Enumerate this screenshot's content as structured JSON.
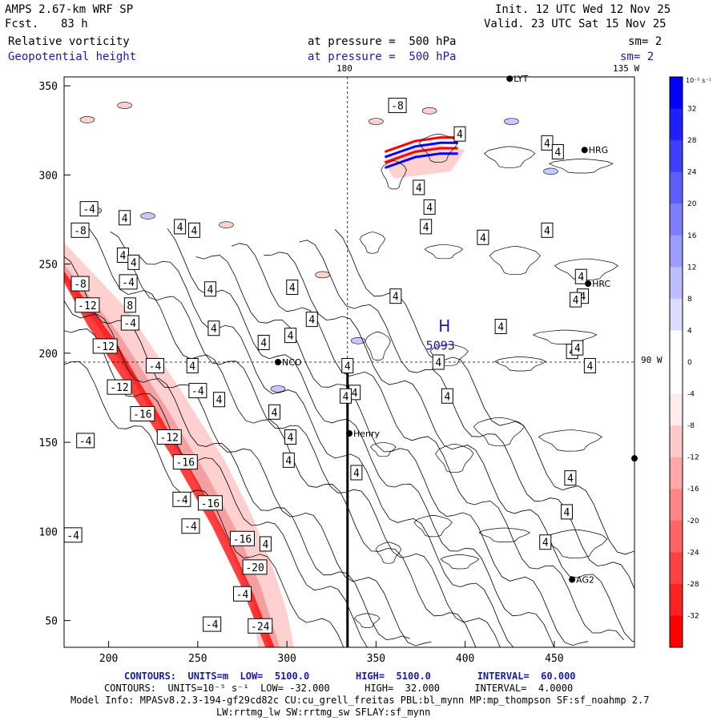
{
  "header": {
    "model": "AMPS 2.67-km WRF SP",
    "fcst_label": "Fcst.",
    "fcst_value": "83 h",
    "init": "Init. 12 UTC Wed 12 Nov 25",
    "valid": "Valid. 23 UTC Sat 15 Nov 25",
    "field1": "Relative vorticity",
    "field2": "Geopotential height",
    "pressure1": "at pressure =  500 hPa",
    "pressure2": "at pressure =  500 hPa",
    "sm1": "sm= 2",
    "sm2": "sm= 2"
  },
  "footer": {
    "line1": "CONTOURS:  UNITS=m  LOW=  5100.0        HIGH=  5100.0        INTERVAL=  60.000",
    "line2": "CONTOURS:  UNITS=10⁻⁵ s⁻¹  LOW= -32.000      HIGH=  32.000      INTERVAL=  4.0000",
    "line3": "Model Info: MPASv8.2.3-194-gf29cd82c CU:cu_grell_freitas PBL:bl_mynn MP:mp_thompson SF:sf_noahmp 2.7",
    "line4": "LW:rrtmg_lw SW:rrtmg_sw SFLAY:sf_mynn"
  },
  "map_labels": {
    "lon_180": "180",
    "lon_135w": "135 W",
    "lat_90w": "90 W",
    "high_H": "H",
    "high_value": "5093"
  },
  "stations": [
    {
      "name": "LYT",
      "x": 425,
      "y": 354
    },
    {
      "name": "HRG",
      "x": 467,
      "y": 314
    },
    {
      "name": "HRC",
      "x": 469,
      "y": 239
    },
    {
      "name": "NCO",
      "x": 295,
      "y": 195
    },
    {
      "name": "Henry",
      "x": 335,
      "y": 155
    },
    {
      "name": "AG2",
      "x": 460,
      "y": 73
    },
    {
      "name": "",
      "x": 495,
      "y": 141
    }
  ],
  "colors": {
    "blue_dark": "#0000ff",
    "blue_light": "#c8c8ff",
    "red_dark": "#ff0000",
    "red_light": "#ffd0d0",
    "text_blue": "#1a1aa8"
  },
  "chart_data": {
    "type": "contour",
    "title": "Relative vorticity and Geopotential height at 500 hPa",
    "xlim": [
      175,
      495
    ],
    "ylim": [
      35,
      355
    ],
    "xticks": [
      200,
      250,
      300,
      350,
      400,
      450
    ],
    "yticks": [
      50,
      100,
      150,
      200,
      250,
      300,
      350
    ],
    "colorbar": {
      "units": "10⁻⁵ s⁻¹",
      "ticks": [
        32,
        28,
        24,
        20,
        16,
        12,
        8,
        4,
        0,
        -4,
        -8,
        -12,
        -16,
        -20,
        -24,
        -28,
        -32
      ]
    },
    "contour_labels": [
      {
        "v": "-8",
        "x": 362,
        "y": 339
      },
      {
        "v": "4",
        "x": 397,
        "y": 323
      },
      {
        "v": "4",
        "x": 446,
        "y": 318
      },
      {
        "v": "4",
        "x": 452,
        "y": 313
      },
      {
        "v": "4",
        "x": 374,
        "y": 293
      },
      {
        "v": "-4",
        "x": 189,
        "y": 281
      },
      {
        "v": "4",
        "x": 209,
        "y": 276
      },
      {
        "v": "4",
        "x": 240,
        "y": 271
      },
      {
        "v": "4",
        "x": 248,
        "y": 269
      },
      {
        "v": "4",
        "x": 378,
        "y": 271
      },
      {
        "v": "4",
        "x": 446,
        "y": 269
      },
      {
        "v": "-8",
        "x": 184,
        "y": 269
      },
      {
        "v": "4",
        "x": 410,
        "y": 265
      },
      {
        "v": "4",
        "x": 208,
        "y": 255
      },
      {
        "v": "4",
        "x": 214,
        "y": 251
      },
      {
        "v": "4",
        "x": 380,
        "y": 282
      },
      {
        "v": "-4",
        "x": 211,
        "y": 240
      },
      {
        "v": "-8",
        "x": 184,
        "y": 239
      },
      {
        "v": "4",
        "x": 303,
        "y": 237
      },
      {
        "v": "4",
        "x": 257,
        "y": 236
      },
      {
        "v": "4",
        "x": 465,
        "y": 243
      },
      {
        "v": "4",
        "x": 466,
        "y": 232
      },
      {
        "v": "4",
        "x": 462,
        "y": 230
      },
      {
        "v": "4",
        "x": 361,
        "y": 232
      },
      {
        "v": "8",
        "x": 212,
        "y": 227
      },
      {
        "v": "-12",
        "x": 188,
        "y": 227
      },
      {
        "v": "4",
        "x": 314,
        "y": 219
      },
      {
        "v": "4",
        "x": 259,
        "y": 214
      },
      {
        "v": "4",
        "x": 302,
        "y": 210
      },
      {
        "v": "4",
        "x": 420,
        "y": 215
      },
      {
        "v": "-4",
        "x": 212,
        "y": 217
      },
      {
        "v": "-12",
        "x": 198,
        "y": 204
      },
      {
        "v": "4",
        "x": 287,
        "y": 206
      },
      {
        "v": "4",
        "x": 460,
        "y": 201
      },
      {
        "v": "4",
        "x": 463,
        "y": 203
      },
      {
        "v": "-4",
        "x": 226,
        "y": 193
      },
      {
        "v": "4",
        "x": 247,
        "y": 193
      },
      {
        "v": "4",
        "x": 334,
        "y": 193
      },
      {
        "v": "4",
        "x": 385,
        "y": 195
      },
      {
        "v": "4",
        "x": 470,
        "y": 193
      },
      {
        "v": "-4",
        "x": 250,
        "y": 179
      },
      {
        "v": "-12",
        "x": 206,
        "y": 181
      },
      {
        "v": "4",
        "x": 262,
        "y": 174
      },
      {
        "v": "4",
        "x": 338,
        "y": 178
      },
      {
        "v": "4",
        "x": 390,
        "y": 176
      },
      {
        "v": "4",
        "x": 293,
        "y": 167
      },
      {
        "v": "-16",
        "x": 219,
        "y": 166
      },
      {
        "v": "4",
        "x": 333,
        "y": 176
      },
      {
        "v": "-12",
        "x": 234,
        "y": 153
      },
      {
        "v": "4",
        "x": 302,
        "y": 153
      },
      {
        "v": "-4",
        "x": 187,
        "y": 151
      },
      {
        "v": "4",
        "x": 301,
        "y": 140
      },
      {
        "v": "-16",
        "x": 243,
        "y": 139
      },
      {
        "v": "4",
        "x": 339,
        "y": 133
      },
      {
        "v": "4",
        "x": 459,
        "y": 130
      },
      {
        "v": "-4",
        "x": 241,
        "y": 118
      },
      {
        "v": "-16",
        "x": 257,
        "y": 116
      },
      {
        "v": "4",
        "x": 457,
        "y": 111
      },
      {
        "v": "-4",
        "x": 246,
        "y": 103
      },
      {
        "v": "-4",
        "x": 180,
        "y": 98
      },
      {
        "v": "-16",
        "x": 275,
        "y": 96
      },
      {
        "v": "4",
        "x": 288,
        "y": 93
      },
      {
        "v": "4",
        "x": 445,
        "y": 94
      },
      {
        "v": "-20",
        "x": 282,
        "y": 80
      },
      {
        "v": "-4",
        "x": 275,
        "y": 65
      },
      {
        "v": "-4",
        "x": 258,
        "y": 48
      },
      {
        "v": "-24",
        "x": 285,
        "y": 47
      }
    ]
  }
}
